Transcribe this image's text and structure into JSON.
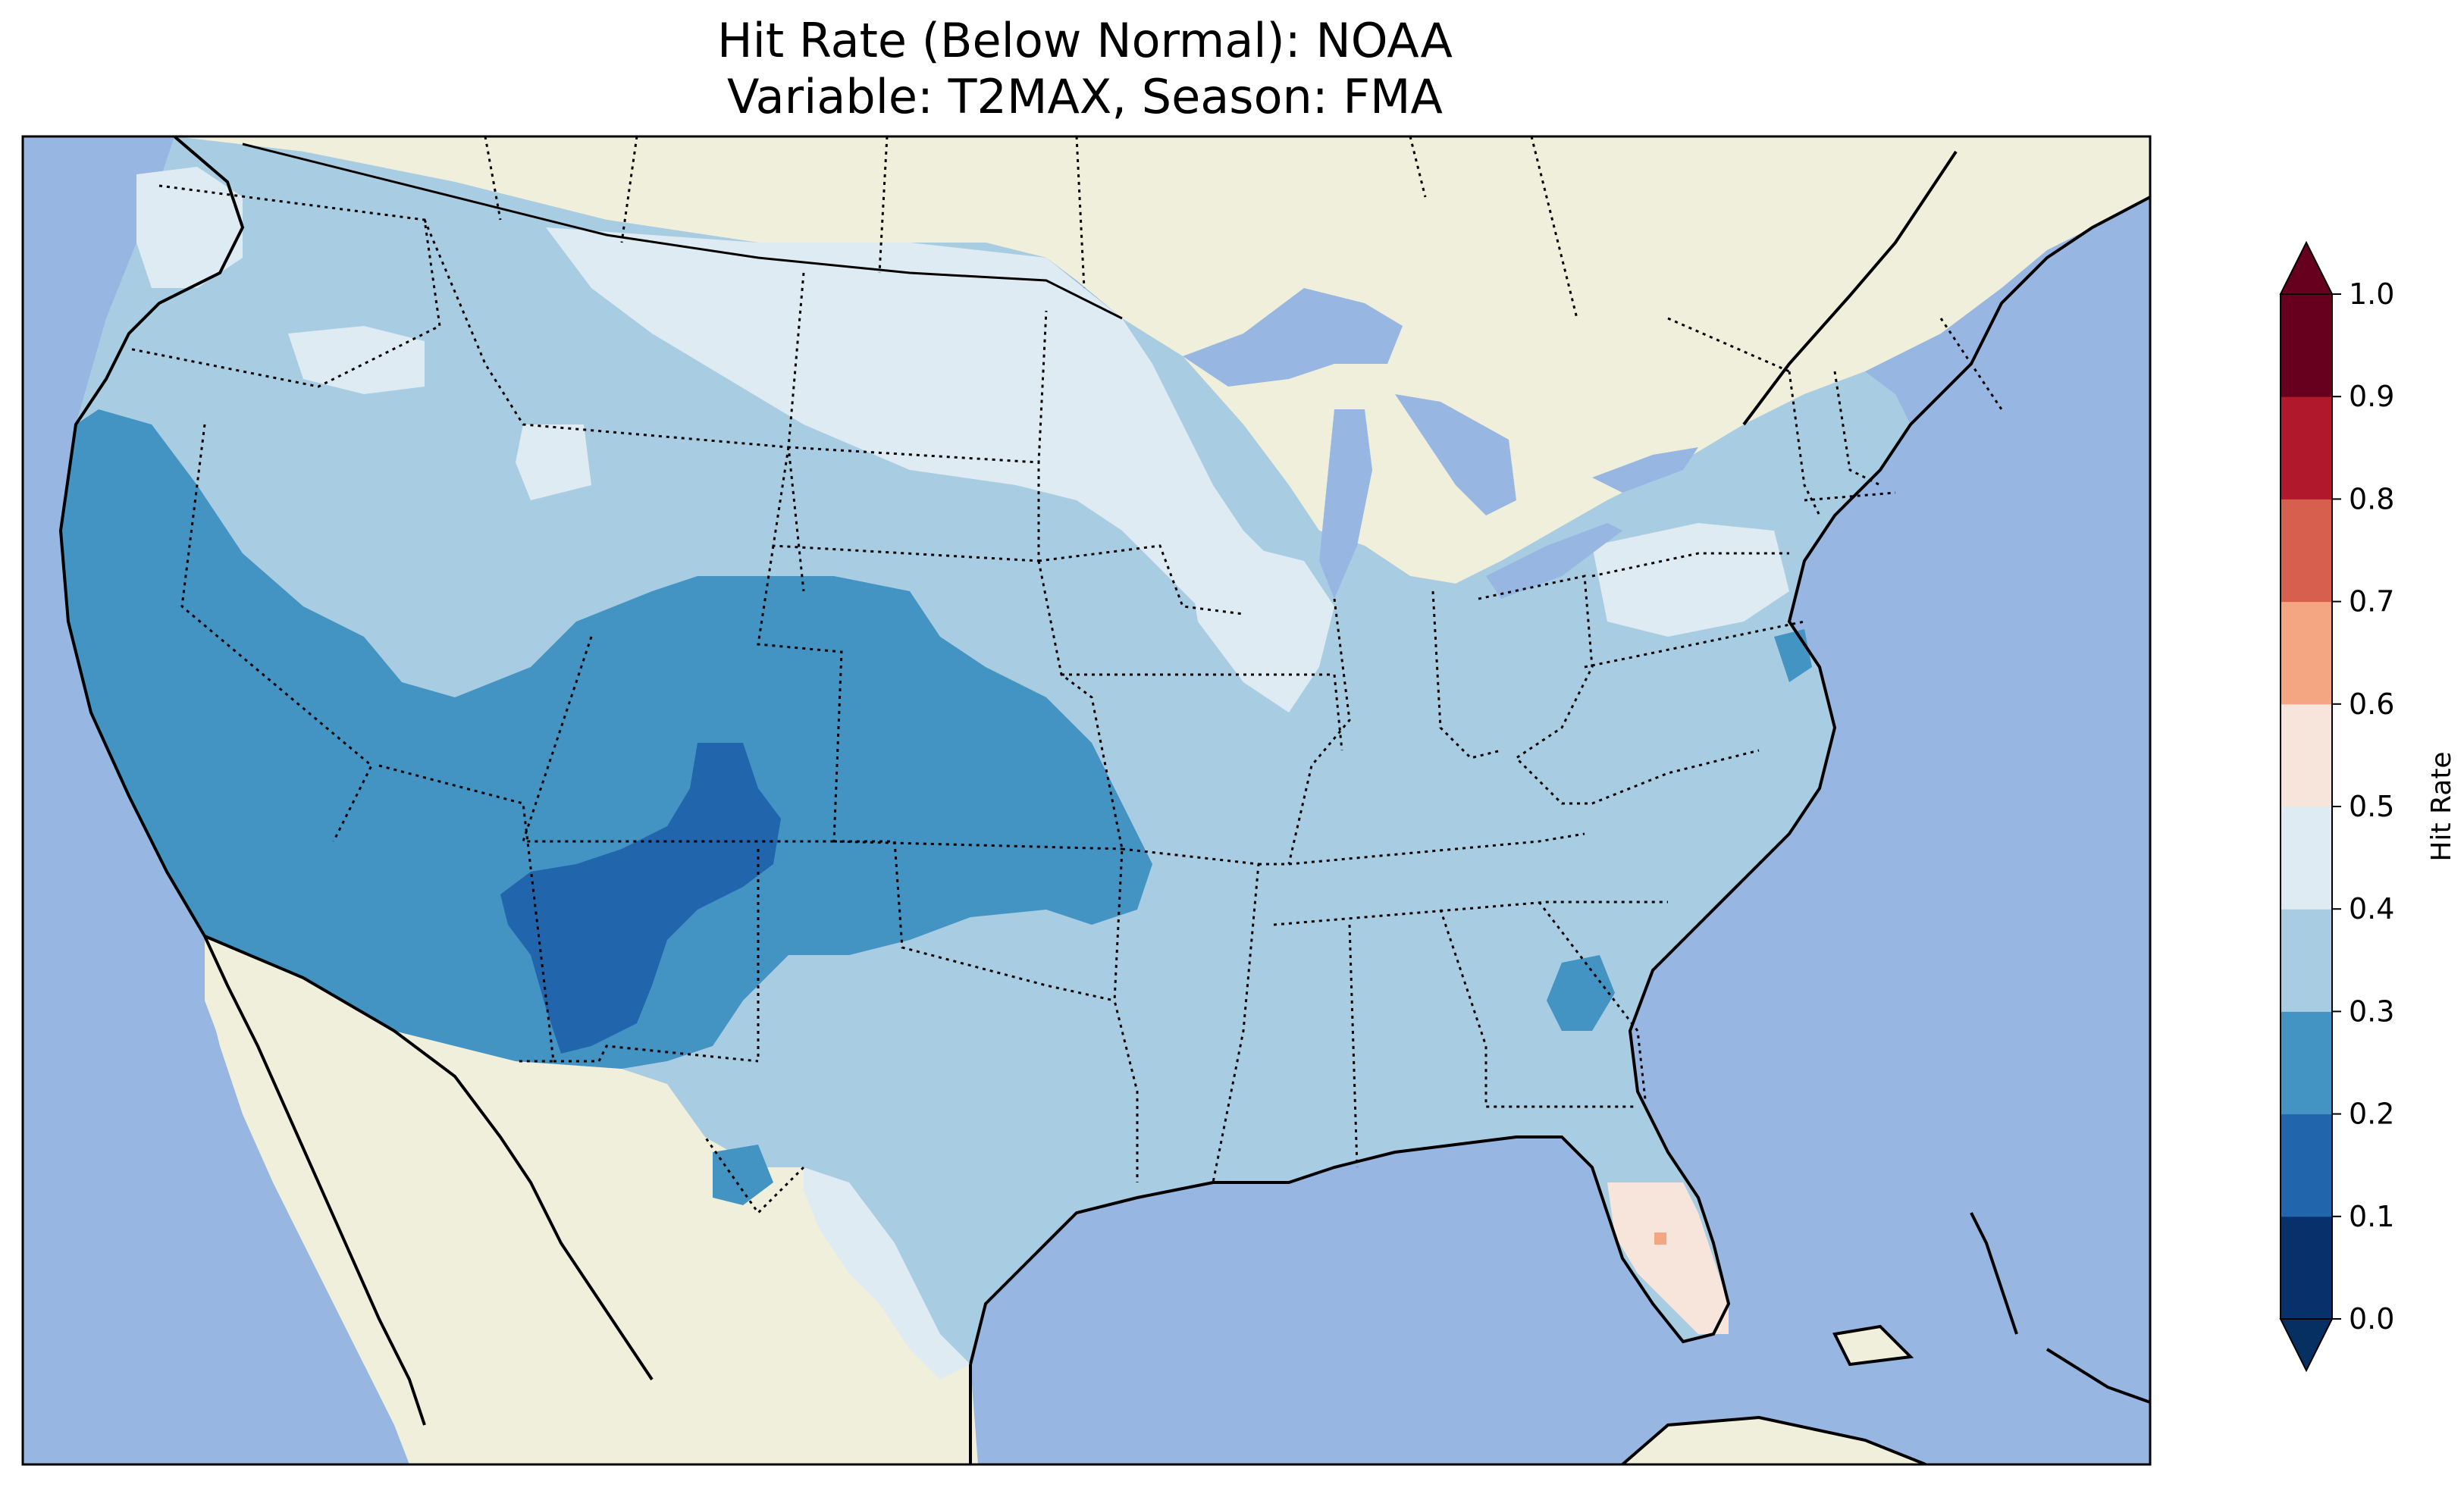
{
  "title_line1": "Hit Rate (Below Normal): NOAA",
  "title_line2": "Variable: T2MAX, Season: FMA",
  "colorbar": {
    "label": "Hit Rate",
    "ticks": [
      "0.0",
      "0.1",
      "0.2",
      "0.3",
      "0.4",
      "0.5",
      "0.6",
      "0.7",
      "0.8",
      "0.9",
      "1.0"
    ],
    "bins": [
      {
        "range": "0.0-0.1",
        "color": "#08306b"
      },
      {
        "range": "0.1-0.2",
        "color": "#2166ac"
      },
      {
        "range": "0.2-0.3",
        "color": "#4393c3"
      },
      {
        "range": "0.3-0.4",
        "color": "#a8cde2"
      },
      {
        "range": "0.4-0.5",
        "color": "#deebf2"
      },
      {
        "range": "0.5-0.6",
        "color": "#f7e4da"
      },
      {
        "range": "0.6-0.7",
        "color": "#f4a582"
      },
      {
        "range": "0.7-0.8",
        "color": "#d6604d"
      },
      {
        "range": "0.8-0.9",
        "color": "#b2182b"
      },
      {
        "range": "0.9-1.0",
        "color": "#67001f"
      }
    ],
    "under_color": "#053061",
    "over_color": "#67001f"
  },
  "map_colors": {
    "ocean": "#97b6e1",
    "land": "#efefdb"
  },
  "regions": [
    {
      "name": "pacific-northwest",
      "value_bin": "0.3-0.4"
    },
    {
      "name": "california",
      "value_bin": "0.2-0.3"
    },
    {
      "name": "four-corners",
      "value_bin": "0.1-0.2"
    },
    {
      "name": "southern-plains",
      "value_bin": "0.2-0.3"
    },
    {
      "name": "northern-plains",
      "value_bin": "0.4-0.5"
    },
    {
      "name": "florida",
      "value_bin": "0.5-0.6"
    }
  ]
}
